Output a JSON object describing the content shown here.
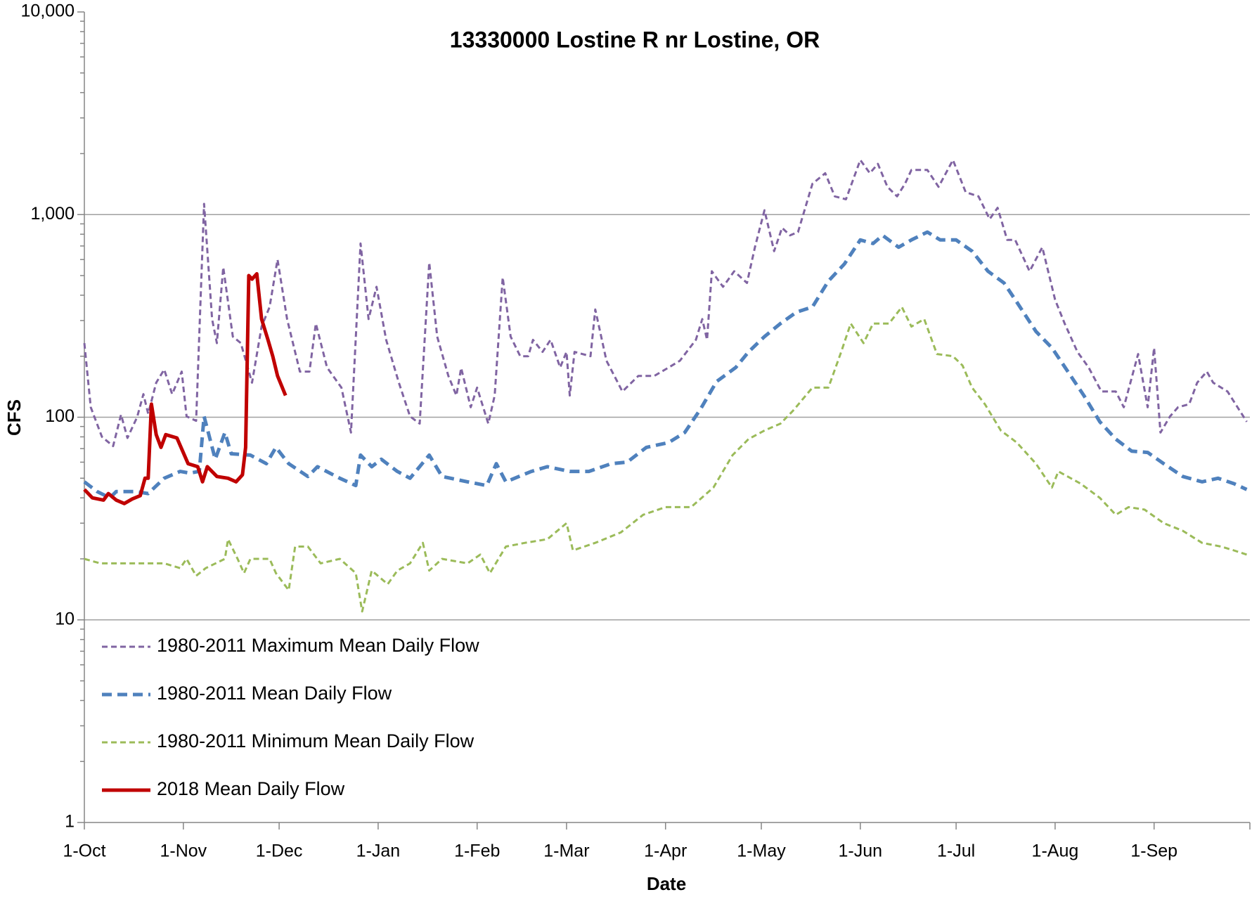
{
  "chart_data": {
    "type": "line",
    "title": "13330000 Lostine R nr Lostine, OR",
    "x_label": "Date",
    "y_label": "CFS",
    "log_y": true,
    "grid": true,
    "legend": "lower left",
    "xlim": [
      0,
      365
    ],
    "xticks": [
      {
        "value": 0,
        "label": "1-Oct"
      },
      {
        "value": 31,
        "label": "1-Nov"
      },
      {
        "value": 61,
        "label": "1-Dec"
      },
      {
        "value": 92,
        "label": "1-Jan"
      },
      {
        "value": 123,
        "label": "1-Feb"
      },
      {
        "value": 151,
        "label": "1-Mar"
      },
      {
        "value": 182,
        "label": "1-Apr"
      },
      {
        "value": 212,
        "label": "1-May"
      },
      {
        "value": 243,
        "label": "1-Jun"
      },
      {
        "value": 273,
        "label": "1-Jul"
      },
      {
        "value": 304,
        "label": "1-Aug"
      },
      {
        "value": 335,
        "label": "1-Sep"
      }
    ],
    "ylim": [
      1,
      10000
    ],
    "yticks": [
      1,
      10,
      100,
      {
        "value": 1000,
        "label": "1,000"
      },
      {
        "value": 10000,
        "label": "10,000"
      }
    ],
    "yminorticks": [
      2,
      3,
      4,
      5,
      6,
      7,
      8,
      9,
      20,
      30,
      40,
      50,
      60,
      70,
      80,
      90,
      200,
      300,
      400,
      500,
      600,
      700,
      800,
      900,
      2000,
      3000,
      4000,
      5000,
      6000,
      7000,
      8000,
      9000
    ],
    "series": [
      {
        "name": "1980-2011 Maximum Mean Daily Flow",
        "color": "#8064a2",
        "style": "dashed",
        "width": 3,
        "x": [
          0,
          2,
          5.5,
          9,
          11.5,
          13.5,
          16.5,
          18.5,
          20,
          22.5,
          25,
          27.5,
          30.5,
          32,
          35,
          37.5,
          40,
          41.5,
          43.5,
          46.5,
          49,
          52.5,
          55.5,
          58,
          60.5,
          63.5,
          67.5,
          70.5,
          72.5,
          76,
          80.5,
          83.5,
          86.5,
          89,
          91.5,
          94.5,
          98.5,
          102,
          105,
          108,
          110.5,
          114,
          116.5,
          118,
          121,
          123,
          126.5,
          128.5,
          131,
          133.5,
          136.5,
          139,
          140.5,
          143.5,
          146,
          149,
          151,
          152,
          153.5,
          158.5,
          160,
          163.5,
          168.5,
          173.5,
          178.5,
          183,
          186.5,
          191.5,
          193.5,
          195,
          196.5,
          200,
          203.5,
          207.5,
          210,
          213,
          216,
          218.5,
          221,
          223.5,
          228,
          232,
          235,
          238.5,
          243,
          246,
          248.5,
          251.5,
          254.5,
          257,
          259,
          264,
          267.5,
          272,
          276,
          280,
          283.5,
          286,
          289,
          291.5,
          296,
          300,
          304,
          307,
          311,
          314.5,
          318.5,
          323,
          325.5,
          330,
          333,
          335,
          337,
          340,
          342.5,
          346,
          348.5,
          351.5,
          353.5,
          358,
          364
        ],
        "values": [
          232,
          112,
          80,
          72,
          103,
          79,
          100,
          130,
          104,
          148,
          172,
          130,
          168,
          101,
          96,
          1130,
          305,
          232,
          550,
          250,
          232,
          148,
          280,
          350,
          600,
          305,
          168,
          168,
          290,
          176,
          140,
          84,
          720,
          305,
          440,
          241,
          148,
          101,
          93,
          580,
          250,
          160,
          128,
          175,
          112,
          140,
          93,
          128,
          490,
          250,
          200,
          200,
          241,
          210,
          241,
          176,
          210,
          128,
          210,
          200,
          340,
          190,
          134,
          160,
          160,
          176,
          190,
          241,
          305,
          241,
          525,
          440,
          525,
          460,
          690,
          1050,
          660,
          860,
          790,
          820,
          1420,
          1600,
          1230,
          1190,
          1860,
          1600,
          1780,
          1370,
          1230,
          1420,
          1660,
          1660,
          1370,
          1860,
          1290,
          1230,
          950,
          1080,
          750,
          750,
          525,
          690,
          380,
          290,
          210,
          176,
          134,
          134,
          112,
          205,
          112,
          220,
          84,
          101,
          112,
          116,
          148,
          168,
          148,
          134,
          95
        ]
      },
      {
        "name": "1980-2011 Mean Daily Flow",
        "color": "#4f81bd",
        "style": "dashed",
        "width": 5,
        "x": [
          0,
          4,
          8,
          10,
          16,
          20,
          25,
          30,
          33,
          36,
          37.5,
          41,
          44,
          46,
          52,
          57,
          60,
          64,
          70,
          73,
          80,
          85,
          86.5,
          90,
          93,
          98,
          102,
          108,
          112,
          120,
          126,
          129,
          132,
          140,
          145,
          152,
          158,
          165,
          170,
          176,
          183,
          188,
          193,
          198,
          204,
          208,
          213,
          218,
          223,
          228,
          233,
          238,
          243,
          247,
          250,
          255,
          259,
          264,
          268,
          273,
          278,
          283,
          288,
          292,
          298,
          303,
          308,
          313,
          318,
          323,
          328,
          333,
          338,
          344,
          350,
          355,
          360,
          364
        ],
        "values": [
          48,
          43,
          40,
          43,
          43,
          42,
          50,
          54,
          53,
          54,
          101,
          62,
          84,
          66,
          65,
          59,
          71,
          59,
          51,
          57,
          50,
          46,
          65,
          57,
          62,
          54,
          50,
          65,
          51,
          48,
          46,
          59,
          48,
          54,
          57,
          54,
          54,
          59,
          60,
          71,
          75,
          84,
          110,
          150,
          176,
          210,
          250,
          290,
          330,
          350,
          470,
          570,
          750,
          720,
          790,
          690,
          750,
          820,
          750,
          750,
          660,
          525,
          460,
          370,
          265,
          220,
          168,
          128,
          95,
          78,
          68,
          67,
          59,
          51,
          48,
          50,
          47,
          44
        ]
      },
      {
        "name": "1980-2011 Minimum Mean Daily Flow",
        "color": "#9bbb59",
        "style": "dashed",
        "width": 3,
        "x": [
          0,
          5,
          25,
          30,
          32,
          35,
          38,
          44,
          45,
          48,
          50,
          52,
          58,
          60,
          64,
          66,
          70,
          74,
          80,
          85,
          87,
          90,
          95,
          98,
          102,
          106,
          108,
          112,
          120,
          124,
          127,
          132,
          138,
          145,
          151,
          153,
          160,
          168,
          175,
          182,
          190,
          197,
          203,
          208,
          213,
          218,
          222,
          228,
          233,
          237,
          240,
          244,
          247,
          252,
          256,
          259,
          263,
          267,
          272,
          275,
          278,
          282,
          287,
          292,
          298,
          303,
          305,
          312,
          318,
          323,
          327,
          332,
          338,
          344,
          350,
          356,
          360,
          364
        ],
        "values": [
          20,
          19,
          19,
          18,
          20,
          16.5,
          18,
          20,
          25,
          20,
          17,
          20,
          20,
          17,
          14,
          23,
          23,
          19,
          20,
          17,
          11,
          17.5,
          15,
          17.5,
          19,
          24,
          17.5,
          20,
          19,
          21,
          17,
          23,
          24,
          25,
          30,
          22,
          24,
          27,
          33,
          36,
          36,
          45,
          65,
          78,
          86,
          93,
          108,
          140,
          140,
          210,
          290,
          232,
          290,
          290,
          350,
          280,
          305,
          205,
          200,
          180,
          140,
          116,
          86,
          75,
          59,
          45,
          54,
          47,
          40,
          33,
          36,
          35,
          30,
          27.5,
          24,
          23,
          22,
          21
        ]
      },
      {
        "name": "2018 Mean Daily Flow",
        "color": "#c00000",
        "style": "solid",
        "width": 5,
        "x": [
          0,
          2.5,
          6,
          7.5,
          10,
          12.5,
          15,
          17.5,
          19,
          20,
          21,
          22.5,
          24,
          25.5,
          29,
          32.5,
          35.5,
          37,
          38.5,
          41.5,
          45,
          47.5,
          49.5,
          50.5,
          51.5,
          52.5,
          54,
          55.5,
          57.5,
          59,
          60.5,
          63
        ],
        "values": [
          44,
          40,
          39,
          42,
          39,
          37.5,
          39.5,
          41,
          50,
          50,
          116,
          82,
          71,
          82,
          79,
          59,
          57,
          48,
          57,
          51,
          50,
          48,
          52,
          71,
          500,
          480,
          510,
          305,
          241,
          200,
          160,
          128
        ]
      }
    ]
  }
}
